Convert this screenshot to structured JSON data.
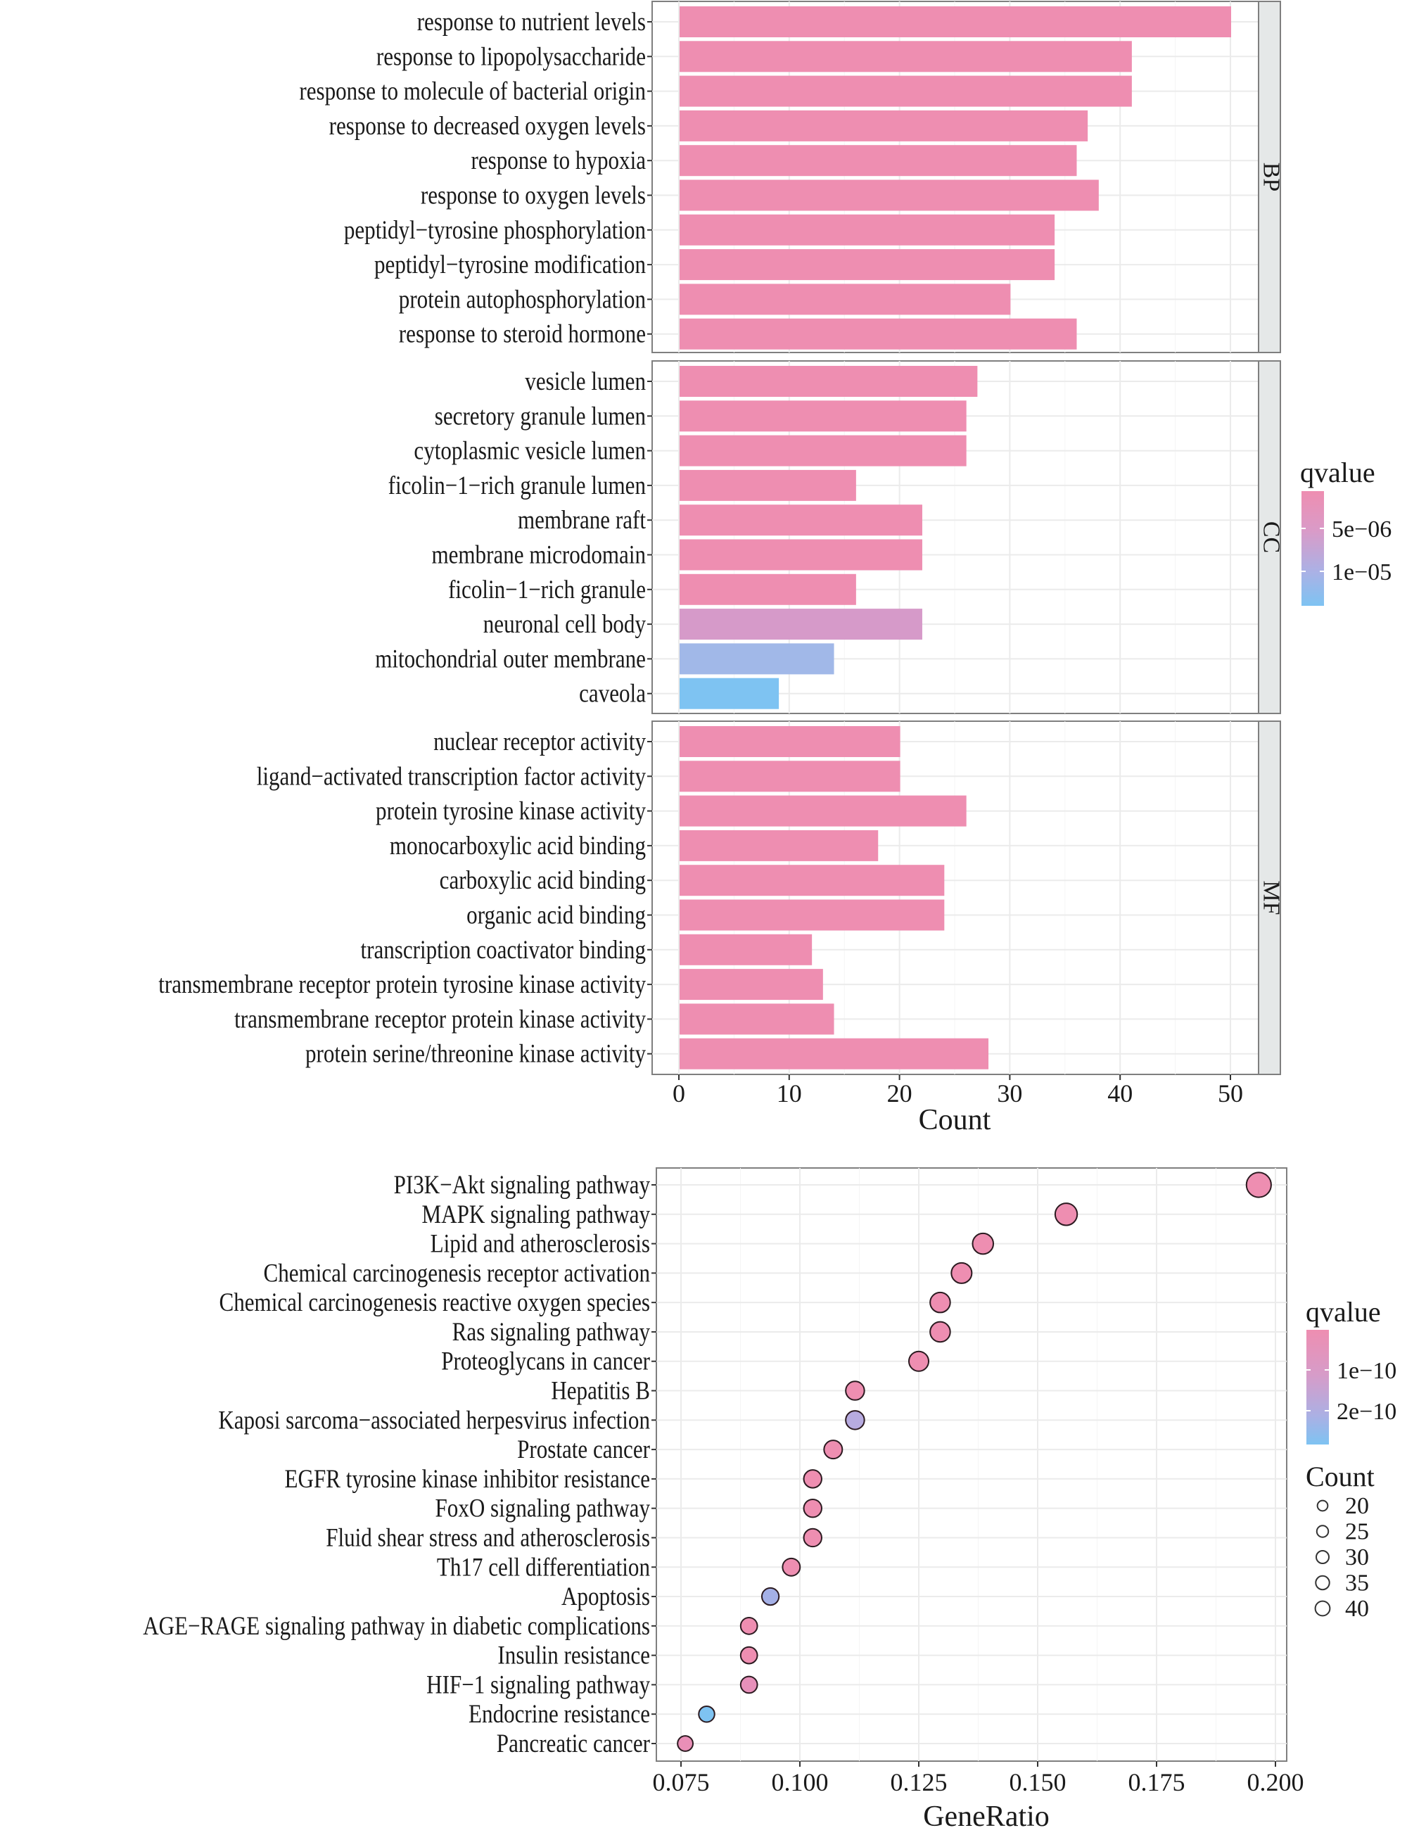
{
  "chart_data": [
    {
      "type": "bar",
      "orientation": "horizontal",
      "title": "",
      "xlabel": "Count",
      "ylabel": "",
      "xlim": [
        0,
        52.5
      ],
      "xticks": [
        "0",
        "10",
        "20",
        "30",
        "40",
        "50"
      ],
      "grid": true,
      "legend": {
        "title": "qvalue",
        "type": "colorbar",
        "labels": [
          "5e−06",
          "1e−05"
        ],
        "colors": [
          "#EE8EB1",
          "#7EC3F2"
        ],
        "position": "right"
      },
      "facets": [
        {
          "name": "BP",
          "categories": [
            "response to nutrient levels",
            "response to lipopolysaccharide",
            "response to molecule of  bacterial origin",
            "response to decreased oxygen levels",
            "response to hypoxia",
            "response to oxygen levels",
            "peptidyl−tyrosine phosphorylation",
            "peptidyl−tyrosine modification",
            "protein autophosphorylation",
            "response to steroid hormone"
          ],
          "values": [
            50,
            41,
            41,
            37,
            36,
            38,
            34,
            34,
            30,
            36
          ],
          "colors": [
            "#EE8EB1",
            "#EE8EB1",
            "#EE8EB1",
            "#EE8EB1",
            "#EE8EB1",
            "#EE8EB1",
            "#EE8EB1",
            "#EE8EB1",
            "#EE8EB1",
            "#EE8EB1"
          ]
        },
        {
          "name": "CC",
          "categories": [
            "vesicle lumen",
            "secretory granule lumen",
            "cytoplasmic vesicle lumen",
            "ficolin−1−rich granule lumen",
            "membrane raft",
            "membrane microdomain",
            "ficolin−1−rich granule",
            "neuronal cell body",
            "mitochondrial outer membrane",
            "caveola"
          ],
          "values": [
            27,
            26,
            26,
            16,
            22,
            22,
            16,
            22,
            14,
            9
          ],
          "colors": [
            "#EE8EB1",
            "#EE8EB1",
            "#EE8EB1",
            "#EE8EB1",
            "#EE8EB1",
            "#EE8EB1",
            "#EE8EB1",
            "#D69AC9",
            "#A1B8E8",
            "#7EC3F2"
          ]
        },
        {
          "name": "MF",
          "categories": [
            "nuclear receptor activity",
            "ligand−activated transcription factor activity",
            "protein tyrosine kinase activity",
            "monocarboxylic acid binding",
            "carboxylic acid binding",
            "organic acid binding",
            "transcription coactivator  binding",
            "transmembrane receptor protein tyrosine kinase activity",
            "transmembrane receptor protein kinase activity",
            "protein serine/threonine kinase activity"
          ],
          "values": [
            20,
            20,
            26,
            18,
            24,
            24,
            12,
            13,
            14,
            28
          ],
          "colors": [
            "#EE8EB1",
            "#EE8EB1",
            "#EE8EB1",
            "#EE8EB1",
            "#EE8EB1",
            "#EE8EB1",
            "#EE8EB1",
            "#EE8EB1",
            "#EE8EB1",
            "#EE8EB1"
          ]
        }
      ]
    },
    {
      "type": "scatter",
      "title": "",
      "xlabel": "GeneRatio",
      "ylabel": "",
      "xlim": [
        0.071,
        0.2035
      ],
      "xticks": [
        "0.075",
        "0.100",
        "0.125",
        "0.150",
        "0.175",
        "0.200"
      ],
      "grid": true,
      "categories": [
        "PI3K−Akt signaling pathway",
        "MAPK signaling pathway",
        "Lipid and atherosclerosis",
        "Chemical carcinogenesis receptor activation",
        "Chemical carcinogenesis reactive oxygen species",
        "Ras signaling pathway",
        "Proteoglycans in cancer",
        "Hepatitis B",
        "Kaposi sarcoma−associated herpesvirus infection",
        "Prostate cancer",
        "EGFR tyrosine kinase  inhibitor resistance",
        "FoxO signaling pathway",
        "Fluid shear stress and atherosclerosis",
        "Th17 cell differentiation",
        "Apoptosis",
        "AGE−RAGE signaling pathway  in diabetic complications",
        "Insulin resistance",
        "HIF−1 signaling pathway",
        "Endocrine resistance",
        "Pancreatic cancer"
      ],
      "x": [
        0.1965,
        0.156,
        0.1385,
        0.134,
        0.1295,
        0.1295,
        0.125,
        0.1116,
        0.1116,
        0.107,
        0.1027,
        0.1027,
        0.1027,
        0.0982,
        0.0938,
        0.0893,
        0.0893,
        0.0893,
        0.0804,
        0.0759
      ],
      "count": [
        44,
        35,
        31,
        30,
        29,
        29,
        28,
        25,
        25,
        24,
        23,
        23,
        23,
        22,
        21,
        20,
        20,
        20,
        18,
        17
      ],
      "colors": [
        "#EE8EB1",
        "#EE8EB1",
        "#EE8EB1",
        "#EE8EB1",
        "#EE8EB1",
        "#EE8EB1",
        "#EE8EB1",
        "#EE8EB1",
        "#B7ABE0",
        "#EE8EB1",
        "#EE8EB1",
        "#EE8EB1",
        "#EE8EB1",
        "#EE8EB1",
        "#A4B0E6",
        "#EE8EB1",
        "#EE8EB1",
        "#E790BA",
        "#7EC3F2",
        "#E98FB7"
      ],
      "legend": {
        "color_title": "qvalue",
        "color_labels": [
          "1e−10",
          "2e−10"
        ],
        "color_range": [
          "#EE8EB1",
          "#7EC3F2"
        ],
        "size_title": "Count",
        "size_labels": [
          "20",
          "25",
          "30",
          "35",
          "40"
        ],
        "position": "right"
      }
    }
  ]
}
